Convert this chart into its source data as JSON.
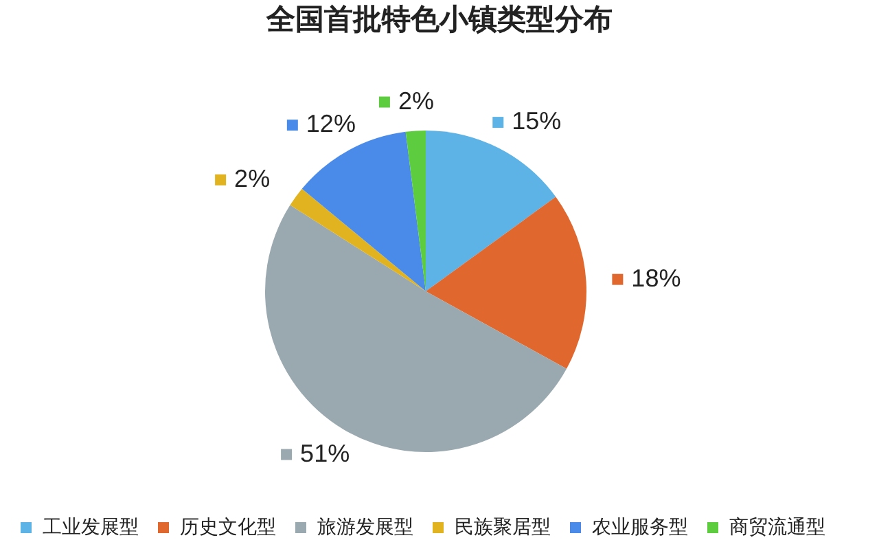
{
  "chart_data": {
    "type": "pie",
    "title": "全国首批特色小镇类型分布",
    "categories": [
      "工业发展型",
      "历史文化型",
      "旅游发展型",
      "民族聚居型",
      "农业服务型",
      "商贸流通型"
    ],
    "values": [
      15,
      18,
      51,
      2,
      12,
      2
    ],
    "colors": [
      "#5db3e6",
      "#e0682f",
      "#9aa9af",
      "#e2b320",
      "#4a8bea",
      "#5dcc3f"
    ],
    "value_labels": [
      "15%",
      "18%",
      "51%",
      "2%",
      "12%",
      "2%"
    ],
    "legend": "bottom"
  }
}
